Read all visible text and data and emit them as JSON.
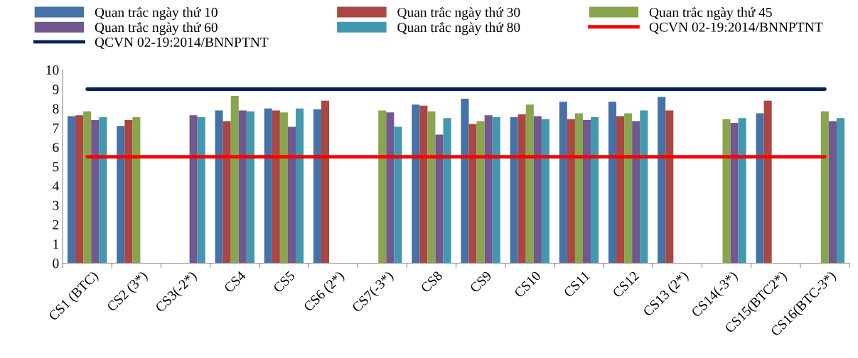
{
  "chart_data": {
    "type": "bar",
    "categories": [
      "CS1 (BTC)",
      "CS2 (3*)",
      "CS3(-2*)",
      "CS4",
      "CS5",
      "CS6 (2*)",
      "CS7(-3*)",
      "CS8",
      "CS9",
      "CS10",
      "CS11",
      "CS12",
      "CS13 (2*)",
      "CS14(-3*)",
      "CS15(BTC2*)",
      "CS16(BTC-3*)"
    ],
    "series": [
      {
        "name": "Quan trắc ngày thứ 10",
        "color": "#4572a7",
        "values": [
          7.6,
          7.1,
          null,
          7.9,
          8.0,
          7.95,
          null,
          8.2,
          8.5,
          7.55,
          8.35,
          8.35,
          8.6,
          null,
          7.75,
          null
        ]
      },
      {
        "name": "Quan trắc ngày thứ 30",
        "color": "#aa4643",
        "values": [
          7.65,
          7.4,
          null,
          7.35,
          7.9,
          8.4,
          null,
          8.15,
          7.2,
          7.7,
          7.45,
          7.6,
          7.9,
          null,
          8.4,
          null
        ]
      },
      {
        "name": "Quan trắc ngày thứ 45",
        "color": "#89a54e",
        "values": [
          7.85,
          7.55,
          null,
          8.65,
          7.8,
          null,
          7.9,
          7.85,
          7.35,
          8.2,
          7.75,
          7.75,
          null,
          7.45,
          null,
          7.85
        ]
      },
      {
        "name": "Quan trắc ngày thứ 60",
        "color": "#71588f",
        "values": [
          7.4,
          null,
          7.65,
          7.9,
          7.05,
          null,
          7.8,
          6.65,
          7.65,
          7.6,
          7.4,
          7.35,
          null,
          7.25,
          null,
          7.35
        ]
      },
      {
        "name": "Quan trắc ngày thứ 80",
        "color": "#4198af",
        "values": [
          7.55,
          null,
          7.55,
          7.85,
          8.0,
          null,
          7.05,
          7.5,
          7.55,
          7.45,
          7.55,
          7.9,
          null,
          7.5,
          null,
          7.5
        ]
      },
      {
        "name": "QCVN 02-19:2014/BNNPTNT",
        "type": "line",
        "color": "#ff0000",
        "values": [
          5.5,
          5.5,
          5.5,
          5.5,
          5.5,
          5.5,
          5.5,
          5.5,
          5.5,
          5.5,
          5.5,
          5.5,
          5.5,
          5.5,
          5.5,
          5.5
        ]
      },
      {
        "name": "QCVN 02-19:2014/BNNPTNT",
        "type": "line",
        "color": "#002060",
        "values": [
          9,
          9,
          9,
          9,
          9,
          9,
          9,
          9,
          9,
          9,
          9,
          9,
          9,
          9,
          9,
          9
        ]
      }
    ],
    "ylim": [
      0,
      10
    ],
    "yticks": [
      0,
      1,
      2,
      3,
      4,
      5,
      6,
      7,
      8,
      9,
      10
    ],
    "grid": false,
    "legend": "top",
    "marker": "none",
    "line_style": "solid"
  }
}
